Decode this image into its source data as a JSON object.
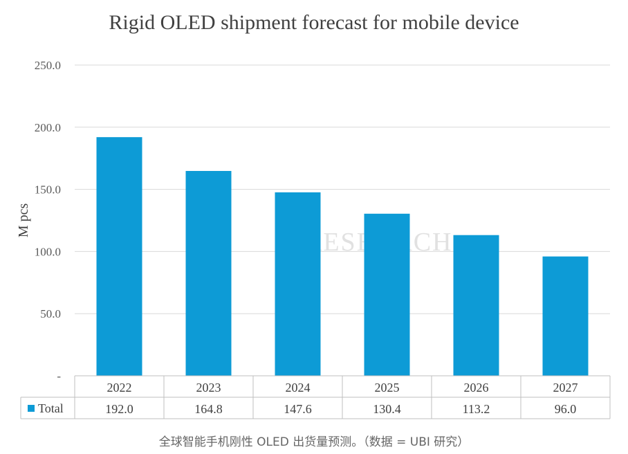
{
  "chart_data": {
    "type": "bar",
    "title": "Rigid OLED shipment forecast for mobile device",
    "ylabel": "M pcs",
    "xlabel": "",
    "categories": [
      "2022",
      "2023",
      "2024",
      "2025",
      "2026",
      "2027"
    ],
    "series": [
      {
        "name": "Total",
        "values": [
          192.0,
          164.8,
          147.6,
          130.4,
          113.2,
          96.0
        ]
      }
    ],
    "table_values": [
      "192.0",
      "164.8",
      "147.6",
      "130.4",
      "113.2",
      "96.0"
    ],
    "yticks": [
      "-",
      "50.0",
      "100.0",
      "150.0",
      "200.0",
      "250.0"
    ],
    "ylim": [
      0,
      250
    ],
    "grid": true,
    "data_table": true,
    "bar_color": "#0d9bd6",
    "gridline_color": "#d9d9d9"
  },
  "watermark": {
    "text": "RESEARCH"
  },
  "caption": "全球智能手机刚性 OLED 出货量预测。（数据 = UBI 研究）"
}
